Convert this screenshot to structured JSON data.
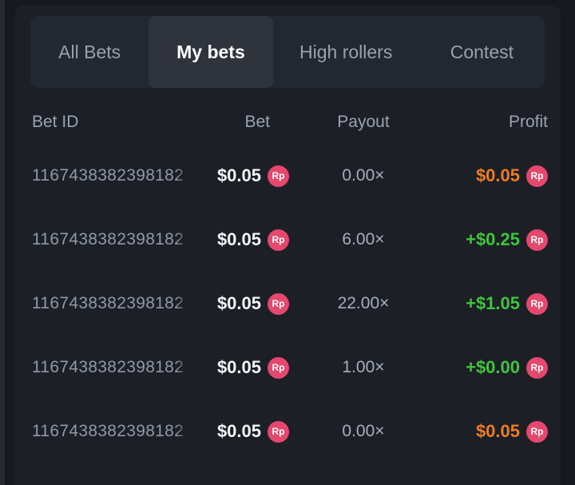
{
  "tabs": [
    {
      "label": "All Bets",
      "active": false
    },
    {
      "label": "My bets",
      "active": true
    },
    {
      "label": "High rollers",
      "active": false
    },
    {
      "label": "Contest",
      "active": false
    }
  ],
  "table": {
    "headers": {
      "bet_id": "Bet ID",
      "bet": "Bet",
      "payout": "Payout",
      "profit": "Profit"
    },
    "rows": [
      {
        "bet_id": "1167438382398182",
        "bet": "$0.05",
        "badge": "Rp",
        "payout": "0.00×",
        "profit": "$0.05",
        "profit_state": "loss"
      },
      {
        "bet_id": "1167438382398182",
        "bet": "$0.05",
        "badge": "Rp",
        "payout": "6.00×",
        "profit": "+$0.25",
        "profit_state": "win"
      },
      {
        "bet_id": "1167438382398182",
        "bet": "$0.05",
        "badge": "Rp",
        "payout": "22.00×",
        "profit": "+$1.05",
        "profit_state": "win"
      },
      {
        "bet_id": "1167438382398182",
        "bet": "$0.05",
        "badge": "Rp",
        "payout": "1.00×",
        "profit": "+$0.00",
        "profit_state": "win"
      },
      {
        "bet_id": "1167438382398182",
        "bet": "$0.05",
        "badge": "Rp",
        "payout": "0.00×",
        "profit": "$0.05",
        "profit_state": "loss"
      }
    ]
  },
  "colors": {
    "profit_win": "#3fc43c",
    "profit_loss": "#ec7d1f",
    "badge_bg": "#e5486c"
  }
}
